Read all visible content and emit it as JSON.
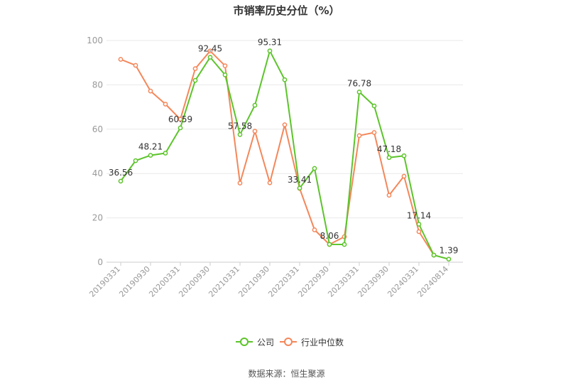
{
  "title": "市销率历史分位（%）",
  "source": "数据来源：恒生聚源",
  "legend": {
    "company": "公司",
    "industry": "行业中位数"
  },
  "colors": {
    "company": "#5cc42a",
    "industry": "#f4875a",
    "grid": "#e8e8e8",
    "axis": "#cccccc"
  },
  "chart_data": {
    "type": "line",
    "title": "市销率历史分位（%）",
    "ylim": [
      0,
      100
    ],
    "yticks": [
      0,
      20,
      40,
      60,
      80,
      100
    ],
    "grid": true,
    "legend_position": "bottom",
    "x": [
      "20190331",
      "20190630",
      "20190930",
      "20191231",
      "20200331",
      "20200630",
      "20200930",
      "20201231",
      "20210331",
      "20210630",
      "20210930",
      "20211231",
      "20220331",
      "20220630",
      "20220930",
      "20221231",
      "20230331",
      "20230630",
      "20230930",
      "20231231",
      "20240331",
      "20240630",
      "20240814"
    ],
    "xtick_labels": [
      "20190331",
      "20190930",
      "20200331",
      "20200930",
      "20210331",
      "20210930",
      "20220331",
      "20220930",
      "20230331",
      "20230930",
      "20240331",
      "20240814"
    ],
    "xtick_indices": [
      0,
      2,
      4,
      6,
      8,
      10,
      12,
      14,
      16,
      18,
      20,
      22
    ],
    "series": [
      {
        "name": "公司",
        "values": [
          36.56,
          45.8,
          48.21,
          49.2,
          60.59,
          82.0,
          92.45,
          84.5,
          57.58,
          70.8,
          95.31,
          82.3,
          33.41,
          42.3,
          8.06,
          8.0,
          76.78,
          70.5,
          47.18,
          48.0,
          17.14,
          3.2,
          1.39
        ],
        "labels": {
          "0": "36.56",
          "2": "48.21",
          "4": "60.59",
          "6": "92.45",
          "8": "57.58",
          "10": "95.31",
          "12": "33.41",
          "14": "8.06",
          "16": "76.78",
          "18": "47.18",
          "20": "17.14",
          "22": "1.39"
        }
      },
      {
        "name": "行业中位数",
        "values": [
          91.5,
          88.8,
          77.2,
          71.3,
          64.5,
          87.3,
          95.3,
          88.6,
          35.7,
          59.1,
          35.8,
          62.0,
          33.3,
          14.6,
          8.0,
          11.5,
          57.1,
          58.5,
          30.2,
          38.8,
          13.8,
          3.2,
          null
        ]
      }
    ]
  }
}
